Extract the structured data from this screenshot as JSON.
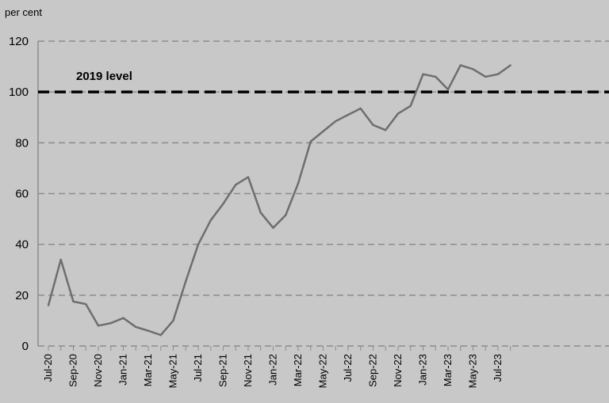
{
  "chart_data": {
    "type": "line",
    "title": "",
    "ylabel": "per cent",
    "ylim": [
      0,
      120
    ],
    "yticks": [
      "0",
      "20",
      "40",
      "60",
      "80",
      "100",
      "120"
    ],
    "grid": true,
    "x": [
      "Jul-20",
      "Aug-20",
      "Sep-20",
      "Oct-20",
      "Nov-20",
      "Dec-20",
      "Jan-21",
      "Feb-21",
      "Mar-21",
      "Apr-21",
      "May-21",
      "Jun-21",
      "Jul-21",
      "Aug-21",
      "Sep-21",
      "Oct-21",
      "Nov-21",
      "Dec-21",
      "Jan-22",
      "Feb-22",
      "Mar-22",
      "Apr-22",
      "May-22",
      "Jun-22",
      "Jul-22",
      "Aug-22",
      "Sep-22",
      "Oct-22",
      "Nov-22",
      "Dec-22",
      "Jan-23",
      "Feb-23",
      "Mar-23",
      "Apr-23",
      "May-23",
      "Jun-23",
      "Jul-23",
      "Aug-23"
    ],
    "xtick_labels": [
      "Jul-20",
      "Sep-20",
      "Nov-20",
      "Jan-21",
      "Mar-21",
      "May-21",
      "Jul-21",
      "Sep-21",
      "Nov-21",
      "Jan-22",
      "Mar-22",
      "May-22",
      "Jul-22",
      "Sep-22",
      "Nov-22",
      "Jan-23",
      "Mar-23",
      "May-23",
      "Jul-23"
    ],
    "series": [
      {
        "values": [
          16,
          34,
          17.5,
          16.5,
          8,
          9,
          11,
          7.5,
          6,
          4.3,
          10,
          25.5,
          40,
          49.5,
          56,
          63.5,
          66.5,
          52.5,
          46.5,
          51.5,
          64,
          80.5,
          84.5,
          88.5,
          91,
          93.5,
          87,
          85,
          91.5,
          94.5,
          107,
          106,
          101,
          110.5,
          109,
          106,
          107,
          110.5
        ]
      }
    ],
    "reference_line": {
      "value": 100,
      "label": "2019 level"
    }
  },
  "colors": {
    "background": "#c8c8c8",
    "line": "#6e6e6e",
    "grid": "#8c8c8c",
    "reference": "#000000"
  }
}
